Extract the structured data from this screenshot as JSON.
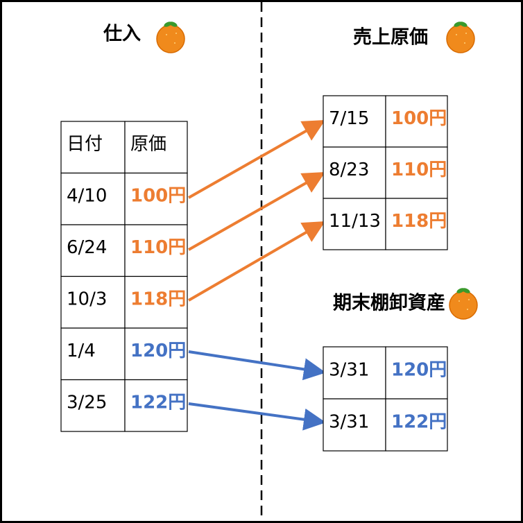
{
  "purchases": {
    "title": "仕入",
    "headers": [
      "日付",
      "原価"
    ],
    "rows": [
      [
        "4/10",
        "100円"
      ],
      [
        "6/24",
        "110円"
      ],
      [
        "10/3",
        "118円"
      ],
      [
        "1/4",
        "120円"
      ],
      [
        "3/25",
        "122円"
      ]
    ]
  },
  "cost_of_sales": {
    "title": "売上原価",
    "rows": [
      [
        "7/15",
        "100円"
      ],
      [
        "8/23",
        "110円"
      ],
      [
        "11/13",
        "118円"
      ]
    ]
  },
  "ending_inventory": {
    "title": "期末棚卸資産",
    "rows": [
      [
        "3/31",
        "120円"
      ],
      [
        "3/31",
        "122円"
      ]
    ]
  }
}
